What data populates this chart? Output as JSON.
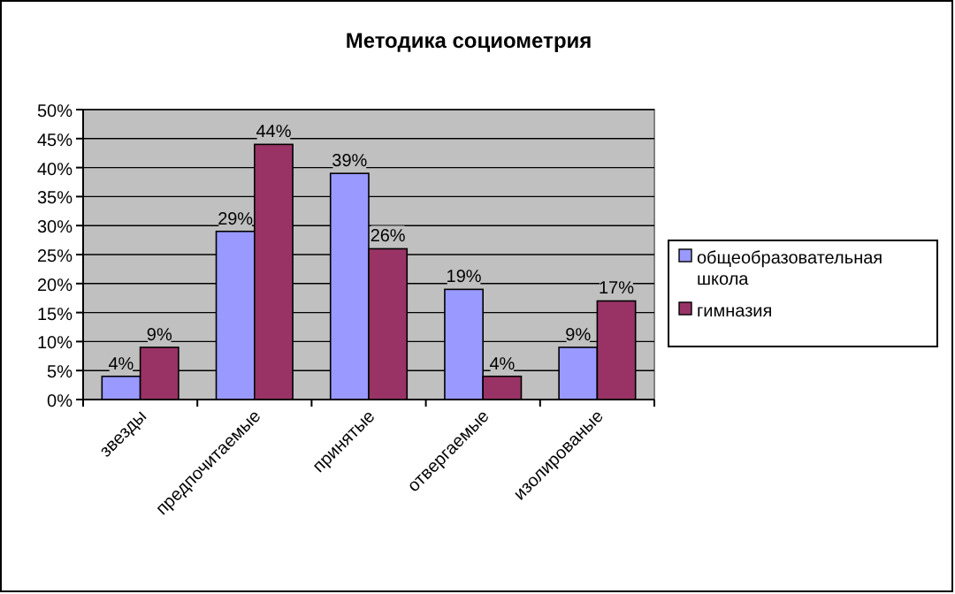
{
  "chart_data": {
    "type": "bar",
    "title": "Методика социометрия",
    "categories": [
      "звезды",
      "предпочитаемые",
      "принятые",
      "отвергаемые",
      "изолированые"
    ],
    "series": [
      {
        "name": "общеобразовательная школа",
        "color": "#9999ff",
        "values": [
          4,
          29,
          39,
          19,
          9
        ],
        "value_labels": [
          "4%",
          "29%",
          "39%",
          "19%",
          "9%"
        ]
      },
      {
        "name": "гимназия",
        "color": "#993366",
        "values": [
          9,
          44,
          26,
          4,
          17
        ],
        "value_labels": [
          "9%",
          "44%",
          "26%",
          "4%",
          "17%"
        ]
      }
    ],
    "ylim": [
      0,
      50
    ],
    "yticks": [
      {
        "value": 0,
        "label": "0%"
      },
      {
        "value": 5,
        "label": "5%"
      },
      {
        "value": 10,
        "label": "10%"
      },
      {
        "value": 15,
        "label": "15%"
      },
      {
        "value": 20,
        "label": "20%"
      },
      {
        "value": 25,
        "label": "25%"
      },
      {
        "value": 30,
        "label": "30%"
      },
      {
        "value": 35,
        "label": "35%"
      },
      {
        "value": 40,
        "label": "40%"
      },
      {
        "value": 45,
        "label": "45%"
      },
      {
        "value": 50,
        "label": "50%"
      }
    ],
    "grid": "y",
    "legend": "right"
  }
}
